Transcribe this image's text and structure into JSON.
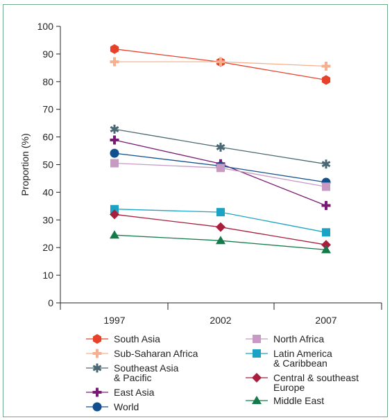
{
  "chart_data": {
    "type": "line",
    "ylabel": "Proportion (%)",
    "xlabel": "",
    "ylim": [
      0,
      100
    ],
    "yticks": [
      0,
      10,
      20,
      30,
      40,
      50,
      60,
      70,
      80,
      90,
      100
    ],
    "categories": [
      "1997",
      "2002",
      "2007"
    ],
    "grid": false,
    "legend_position": "bottom",
    "series": [
      {
        "name": "South Asia",
        "values": [
          91.8,
          87.1,
          80.6
        ],
        "color": "#e8412a",
        "marker": "hexagon"
      },
      {
        "name": "Sub-Saharan Africa",
        "values": [
          87.2,
          87.2,
          85.6
        ],
        "color": "#f6b08f",
        "marker": "plus"
      },
      {
        "name": "Southeast Asia\n& Pacific",
        "values": [
          62.8,
          56.3,
          50.2
        ],
        "color": "#4a6874",
        "marker": "asterisk"
      },
      {
        "name": "East Asia",
        "values": [
          58.9,
          50.3,
          35.2
        ],
        "color": "#7b1a73",
        "marker": "plus"
      },
      {
        "name": "World",
        "values": [
          54.1,
          49.5,
          43.6
        ],
        "color": "#11508f",
        "marker": "circle"
      },
      {
        "name": "North Africa",
        "values": [
          50.5,
          48.8,
          42.0
        ],
        "color": "#c79ac4",
        "marker": "square"
      },
      {
        "name": "Latin America\n& Caribbean",
        "values": [
          33.9,
          32.8,
          25.5
        ],
        "color": "#1aa3c4",
        "marker": "square"
      },
      {
        "name": "Central & southeast\nEurope",
        "values": [
          32.0,
          27.4,
          21.0
        ],
        "color": "#a81e3c",
        "marker": "diamond"
      },
      {
        "name": "Middle East",
        "values": [
          24.5,
          22.5,
          19.2
        ],
        "color": "#137a49",
        "marker": "triangle"
      }
    ],
    "legend": {
      "left_column": [
        "South Asia",
        "Sub-Saharan Africa",
        "Southeast Asia\n& Pacific",
        "East Asia",
        "World"
      ],
      "right_column": [
        "North Africa",
        "Latin America\n& Caribbean",
        "Central & southeast\nEurope",
        "Middle East"
      ]
    }
  }
}
